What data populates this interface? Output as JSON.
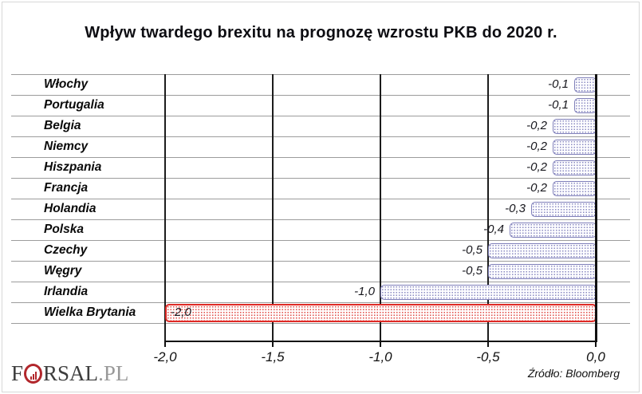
{
  "title": "Wpływ twardego brexitu na prognozę wzrostu PKB do 2020 r.",
  "source": "Źródło: Bloomberg",
  "logo": {
    "f": "F",
    "rsal": "RSAL",
    "pl": ".PL"
  },
  "chart_data": {
    "type": "bar",
    "orientation": "horizontal",
    "title": "Wpływ twardego brexitu na prognozę wzrostu PKB do 2020 r.",
    "categories": [
      "Włochy",
      "Portugalia",
      "Belgia",
      "Niemcy",
      "Hiszpania",
      "Francja",
      "Holandia",
      "Polska",
      "Czechy",
      "Węgry",
      "Irlandia",
      "Wielka Brytania"
    ],
    "values": [
      -0.1,
      -0.1,
      -0.2,
      -0.2,
      -0.2,
      -0.2,
      -0.3,
      -0.4,
      -0.5,
      -0.5,
      -1.0,
      -2.0
    ],
    "value_labels": [
      "-0,1",
      "-0,1",
      "-0,2",
      "-0,2",
      "-0,2",
      "-0,2",
      "-0,3",
      "-0,4",
      "-0,5",
      "-0,5",
      "-1,0",
      "-2,0"
    ],
    "x_ticks": [
      "-2,0",
      "-1,5",
      "-1,0",
      "-0,5",
      "0,0"
    ],
    "x_tick_values": [
      -2.0,
      -1.5,
      -1.0,
      -0.5,
      0.0
    ],
    "xlim": [
      -2.0,
      0.0
    ],
    "grid": true,
    "highlight_category": "Wielka Brytania",
    "highlight_index": 11,
    "colors": {
      "bar_border": "#7f7fb9",
      "bar_dot": "#8b8bc2",
      "bar_fill": "#fdfdff",
      "highlight_border": "#df2a26",
      "highlight_dot": "#e04a45",
      "highlight_fill": "#fffdfd",
      "gridline_light": "#9c9c9c",
      "gridline_dark": "#1c1c1c",
      "text": "#0a0a0a"
    }
  }
}
